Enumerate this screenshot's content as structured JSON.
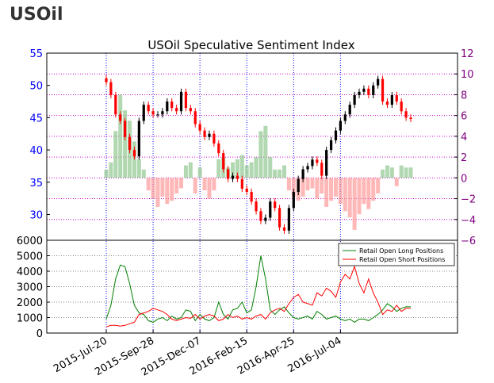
{
  "page": {
    "heading": "USOil"
  },
  "colors": {
    "price": "#000000",
    "price_up": "#000000",
    "price_down": "#ff0000",
    "ssi_positive": "#90c890",
    "ssi_negative": "#ff9a9a",
    "long_line": "#008000",
    "short_line": "#ff0000",
    "left_axis": "#0000ff",
    "right_axis": "#800080",
    "grid_v": "#0000ff",
    "grid_h": "#cc00cc"
  },
  "chart_data": [
    {
      "type": "candlestick+bar",
      "title": "USOil Speculative Sentiment Index",
      "grid": true,
      "left_axis": {
        "ylim": [
          26,
          55
        ],
        "ticks": [
          30,
          35,
          40,
          45,
          50,
          55
        ]
      },
      "right_axis": {
        "ylim": [
          -6,
          12
        ],
        "ticks": [
          -6,
          -4,
          -2,
          0,
          2,
          4,
          6,
          8,
          10,
          12
        ]
      },
      "x_ticks": [
        "2015-Jul-20",
        "2015-Sep-28",
        "2015-Dec-07",
        "2016-Feb-15",
        "2016-Apr-25",
        "2016-Jul-04"
      ],
      "price_series": {
        "name": "USOil price",
        "start": "2015-Jul-20",
        "step_days": 7,
        "values": [
          50.5,
          48.5,
          45.5,
          44.5,
          42.0,
          40.0,
          39.0,
          44.5,
          47.0,
          46.0,
          45.5,
          45.5,
          46.0,
          47.5,
          46.5,
          46.0,
          49.0,
          46.5,
          46.0,
          44.0,
          43.0,
          42.0,
          42.5,
          41.0,
          39.5,
          37.0,
          35.5,
          36.0,
          35.5,
          34.0,
          33.5,
          32.0,
          30.5,
          29.0,
          29.5,
          32.0,
          31.0,
          28.0,
          27.5,
          31.0,
          33.5,
          35.5,
          37.0,
          37.5,
          38.5,
          38.0,
          36.0,
          40.0,
          41.5,
          43.0,
          44.5,
          45.5,
          47.0,
          48.5,
          49.0,
          49.5,
          48.5,
          50.0,
          51.0,
          47.5,
          47.0,
          48.5,
          47.5,
          46.0,
          45.0,
          44.8
        ]
      },
      "ssi_series": {
        "name": "Speculative Sentiment Index",
        "start": "2015-Jul-20",
        "step_days": 7,
        "values": [
          0.8,
          1.5,
          4.5,
          8.0,
          6.5,
          5.5,
          3.5,
          1.8,
          0.8,
          -1.2,
          -2.0,
          -2.8,
          -1.8,
          -2.5,
          -2.2,
          -1.5,
          -1.0,
          1.2,
          1.5,
          -1.5,
          1.0,
          -1.2,
          -2.0,
          -1.2,
          1.8,
          2.0,
          1.0,
          1.5,
          1.8,
          2.2,
          1.2,
          1.5,
          2.0,
          4.5,
          5.0,
          2.0,
          0.8,
          0.8,
          1.2,
          -1.2,
          -1.8,
          -2.2,
          -1.8,
          -1.2,
          -1.0,
          -2.0,
          -1.5,
          -2.8,
          -2.2,
          -1.8,
          -2.5,
          -3.2,
          -3.8,
          -5.0,
          -3.5,
          -2.5,
          -3.0,
          -2.2,
          -1.5,
          0.8,
          1.2,
          1.0,
          -0.8,
          1.2,
          1.0,
          1.0
        ]
      }
    },
    {
      "type": "line",
      "ylim": [
        0,
        6000
      ],
      "y_ticks": [
        0,
        1000,
        2000,
        3000,
        4000,
        5000,
        6000
      ],
      "legend": "top-right",
      "grid": true,
      "series": [
        {
          "name": "Retail Open Long Positions",
          "color": "#008000",
          "start": "2015-Jul-20",
          "step_days": 7,
          "values": [
            900,
            1800,
            3500,
            4400,
            4300,
            3200,
            1800,
            1300,
            1200,
            800,
            700,
            900,
            1000,
            800,
            1100,
            900,
            1000,
            1500,
            1400,
            800,
            1200,
            900,
            800,
            1000,
            2000,
            1200,
            900,
            1500,
            1600,
            2000,
            1300,
            1500,
            3000,
            5000,
            3500,
            1500,
            1200,
            1500,
            1700,
            1300,
            1000,
            900,
            1000,
            1100,
            900,
            1400,
            1200,
            900,
            1000,
            1100,
            900,
            800,
            900,
            700,
            900,
            900,
            800,
            1000,
            1200,
            1500,
            1900,
            1700,
            1400,
            1600,
            1700,
            1700
          ]
        },
        {
          "name": "Retail Open Short Positions",
          "color": "#ff0000",
          "start": "2015-Jul-20",
          "step_days": 7,
          "values": [
            400,
            500,
            500,
            450,
            500,
            600,
            700,
            1200,
            1300,
            1400,
            1600,
            1500,
            1400,
            1200,
            900,
            800,
            900,
            1000,
            950,
            1200,
            900,
            1100,
            1200,
            1100,
            800,
            900,
            1200,
            1000,
            1100,
            900,
            1000,
            900,
            1100,
            1200,
            900,
            1300,
            1500,
            1600,
            1400,
            1900,
            2300,
            2500,
            2000,
            1900,
            1800,
            2600,
            2400,
            2900,
            2700,
            2300,
            3300,
            3800,
            3500,
            4300,
            3200,
            2600,
            3500,
            2600,
            2000,
            1200,
            1500,
            1400,
            1800,
            1400,
            1600,
            1600
          ]
        }
      ]
    }
  ]
}
